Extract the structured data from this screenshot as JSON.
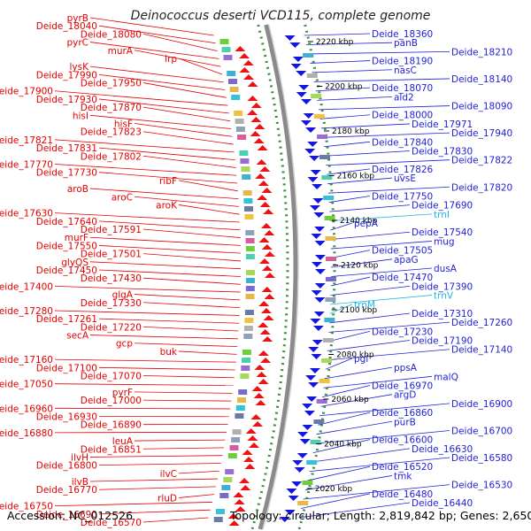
{
  "title": "Deinococcus deserti VCD115, complete genome",
  "footer": {
    "accession": "Accession: NC_012526",
    "topology": "Topology: circular; Length: 2,819,842 bp; Genes: 2,650"
  },
  "colors": {
    "left": "#e60000",
    "right": "#1f1fd6",
    "rna": "#1fb6e8"
  },
  "kbp_ticks": [
    "2220 kbp",
    "2200 kbp",
    "2180 kbp",
    "2160 kbp",
    "2140 kbp",
    "2120 kbp",
    "2100 kbp",
    "2080 kbp",
    "2060 kbp",
    "2040 kbp",
    "2020 kbp"
  ],
  "left_labels": [
    "pyrB",
    "Deide_18040",
    "Deide_18080",
    "pyrC",
    "murA",
    "lrp",
    "lysK",
    "Deide_17990",
    "Deide_17950",
    "Deide_17900",
    "Deide_17930",
    "Deide_17870",
    "hisI",
    "hisF",
    "Deide_17823",
    "Deide_17821",
    "Deide_17831",
    "Deide_17802",
    "Deide_17770",
    "Deide_17730",
    "ribF",
    "aroB",
    "aroC",
    "aroK",
    "Deide_17630",
    "Deide_17640",
    "Deide_17591",
    "murF",
    "Deide_17550",
    "Deide_17501",
    "glyQS",
    "Deide_17450",
    "Deide_17430",
    "Deide_17400",
    "glgA",
    "Deide_17330",
    "Deide_17280",
    "Deide_17261",
    "Deide_17220",
    "secA",
    "gcp",
    "buk",
    "Deide_17160",
    "Deide_17100",
    "Deide_17070",
    "Deide_17050",
    "pyrF",
    "Deide_17000",
    "Deide_16960",
    "Deide_16930",
    "Deide_16890",
    "Deide_16880",
    "leuA",
    "Deide_16851",
    "ilvH",
    "Deide_16800",
    "ilvC",
    "ilvB",
    "Deide_16770",
    "rluD",
    "Deide_16750",
    "Deide_16690",
    "Deide_16570"
  ],
  "right_labels": [
    "Deide_18360",
    "panB",
    "Deide_18210",
    "Deide_18190",
    "nasC",
    "Deide_18140",
    "Deide_18070",
    "ald2",
    "Deide_18090",
    "Deide_18000",
    "Deide_17971",
    "Deide_17940",
    "Deide_17840",
    "Deide_17830",
    "Deide_17822",
    "Deide_17826",
    "uvsE",
    "Deide_17820",
    "Deide_17750",
    "Deide_17690",
    "trnI",
    "pepA",
    "Deide_17540",
    "mug",
    "Deide_17505",
    "apaG",
    "dusA",
    "Deide_17470",
    "Deide_17390",
    "trnV",
    "trnM",
    "Deide_17310",
    "Deide_17260",
    "Deide_17230",
    "Deide_17190",
    "Deide_17140",
    "pgi",
    "ppsA",
    "malQ",
    "Deide_16970",
    "argD",
    "Deide_16900",
    "Deide_16860",
    "purB",
    "Deide_16700",
    "Deide_16600",
    "Deide_16630",
    "Deide_16580",
    "Deide_16520",
    "tmk",
    "Deide_16530",
    "Deide_16480",
    "Deide_16440"
  ]
}
